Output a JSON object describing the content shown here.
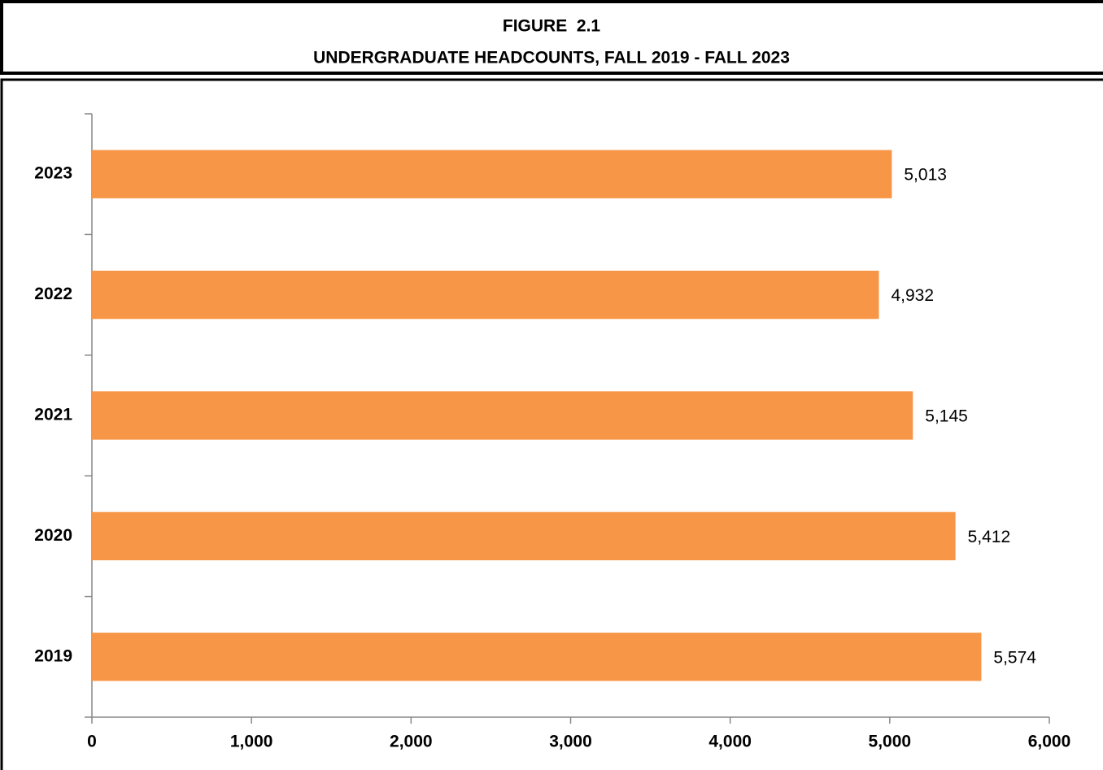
{
  "chart_data": {
    "type": "bar",
    "orientation": "horizontal",
    "title": "FIGURE  2.1",
    "subtitle": "UNDERGRADUATE HEADCOUNTS, FALL 2019 - FALL 2023",
    "categories": [
      "2019",
      "2020",
      "2021",
      "2022",
      "2023"
    ],
    "values": [
      5574,
      5412,
      5145,
      4932,
      5013
    ],
    "value_labels": [
      "5,574",
      "5,412",
      "5,145",
      "4,932",
      "5,013"
    ],
    "color": "#f79646",
    "xlim": [
      0,
      6000
    ],
    "xticks": [
      0,
      {
        "value": 1000,
        "label": "1,000"
      },
      {
        "value": 2000,
        "label": "2,000"
      },
      {
        "value": 3000,
        "label": "3,000"
      },
      {
        "value": 4000,
        "label": "4,000"
      },
      {
        "value": 5000,
        "label": "5,000"
      },
      {
        "value": 6000,
        "label": "6,000"
      }
    ],
    "grid": false
  }
}
